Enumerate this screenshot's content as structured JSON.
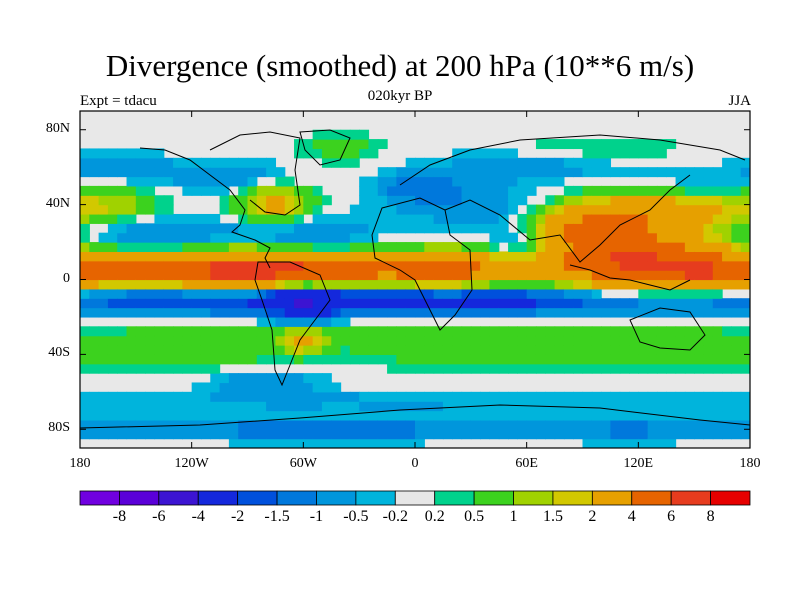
{
  "header": {
    "title": "Divergence (smoothed) at 200 hPa (10**6 m/s)",
    "experiment": "Expt = tdacu",
    "period": "020kyr BP",
    "season": "JJA"
  },
  "map": {
    "projection": "cylindrical-equidistant",
    "lon_range": [
      -180,
      180
    ],
    "lat_range": [
      -90,
      90
    ],
    "y_ticks": [
      {
        "lat": 80,
        "label": "80N"
      },
      {
        "lat": 40,
        "label": "40N"
      },
      {
        "lat": 0,
        "label": "0"
      },
      {
        "lat": -40,
        "label": "40S"
      },
      {
        "lat": -80,
        "label": "80S"
      }
    ],
    "x_ticks": [
      {
        "lon": -180,
        "label": "180"
      },
      {
        "lon": -120,
        "label": "120W"
      },
      {
        "lon": -60,
        "label": "60W"
      },
      {
        "lon": 0,
        "label": "0"
      },
      {
        "lon": 60,
        "label": "60E"
      },
      {
        "lon": 120,
        "label": "120E"
      },
      {
        "lon": 180,
        "label": "180"
      }
    ],
    "background_color": "#e8e8e8",
    "coastline_color": "#000000"
  },
  "colorbar": {
    "colors": [
      "#7000e0",
      "#5a00d8",
      "#3c14d2",
      "#1428dc",
      "#0050dc",
      "#0078dc",
      "#0096dc",
      "#00b4dc",
      "#e6e6e6",
      "#00d28c",
      "#3cd21e",
      "#a0d200",
      "#d2c800",
      "#e6a000",
      "#e66400",
      "#e63c1e",
      "#e60000"
    ],
    "labels": [
      "-8",
      "-6",
      "-4",
      "-2",
      "-1.5",
      "-1",
      "-0.5",
      "-0.2",
      "0.2",
      "0.5",
      "1",
      "1.5",
      "2",
      "4",
      "6",
      "8"
    ]
  },
  "chart_data": {
    "type": "heatmap",
    "title": "Divergence (smoothed) at 200 hPa (10**6 m/s)",
    "xlabel": "",
    "ylabel": "",
    "xlim": [
      -180,
      180
    ],
    "ylim": [
      -90,
      90
    ],
    "levels": [
      -8,
      -6,
      -4,
      -2,
      -1.5,
      -1,
      -0.5,
      -0.2,
      0.2,
      0.5,
      1,
      1.5,
      2,
      4,
      6,
      8
    ],
    "features": [
      {
        "lon": -90,
        "lat": 5,
        "w": 35,
        "h": 7,
        "v": 7
      },
      {
        "lon": -160,
        "lat": 5,
        "w": 28,
        "h": 6,
        "v": 3
      },
      {
        "lon": -45,
        "lat": 5,
        "w": 20,
        "h": 6,
        "v": 2.5
      },
      {
        "lon": 15,
        "lat": 5,
        "w": 30,
        "h": 7,
        "v": 5
      },
      {
        "lon": 115,
        "lat": 10,
        "w": 35,
        "h": 12,
        "v": 6
      },
      {
        "lon": 160,
        "lat": 3,
        "w": 22,
        "h": 7,
        "v": 3
      },
      {
        "lon": 95,
        "lat": 28,
        "w": 22,
        "h": 7,
        "v": 3
      },
      {
        "lon": 130,
        "lat": 38,
        "w": 35,
        "h": 8,
        "v": 2.5
      },
      {
        "lon": -75,
        "lat": 40,
        "w": 14,
        "h": 8,
        "v": 2.5
      },
      {
        "lon": -165,
        "lat": 40,
        "w": 20,
        "h": 7,
        "v": 1.2
      },
      {
        "lon": 55,
        "lat": 20,
        "w": 14,
        "h": 8,
        "v": -1.5
      },
      {
        "lon": -60,
        "lat": -10,
        "w": 12,
        "h": 10,
        "v": -2
      },
      {
        "lon": 0,
        "lat": -10,
        "w": 180,
        "h": 6,
        "v": -2.8
      },
      {
        "lon": -60,
        "lat": 25,
        "w": 25,
        "h": 7,
        "v": -1.2
      },
      {
        "lon": -140,
        "lat": 25,
        "w": 30,
        "h": 6,
        "v": -1.2
      },
      {
        "lon": 30,
        "lat": 40,
        "w": 30,
        "h": 8,
        "v": -1
      },
      {
        "lon": -100,
        "lat": 55,
        "w": 25,
        "h": 6,
        "v": -1
      },
      {
        "lon": 60,
        "lat": 60,
        "w": 40,
        "h": 6,
        "v": -0.8
      },
      {
        "lon": 150,
        "lat": 50,
        "w": 25,
        "h": 5,
        "v": -0.8
      },
      {
        "lon": -40,
        "lat": 70,
        "w": 15,
        "h": 6,
        "v": 0.8
      },
      {
        "lon": 100,
        "lat": 70,
        "w": 30,
        "h": 5,
        "v": 0.6
      },
      {
        "lon": 0,
        "lat": -30,
        "w": 180,
        "h": 5,
        "v": 0.7
      },
      {
        "lon": 30,
        "lat": -40,
        "w": 40,
        "h": 6,
        "v": 0.8
      },
      {
        "lon": 150,
        "lat": -40,
        "w": 40,
        "h": 6,
        "v": 0.8
      },
      {
        "lon": -120,
        "lat": -40,
        "w": 40,
        "h": 6,
        "v": 0.8
      },
      {
        "lon": -60,
        "lat": -32,
        "w": 8,
        "h": 5,
        "v": 2
      },
      {
        "lon": -80,
        "lat": -55,
        "w": 20,
        "h": 5,
        "v": -1
      },
      {
        "lon": 0,
        "lat": -65,
        "w": 180,
        "h": 4,
        "v": -0.6
      },
      {
        "lon": -50,
        "lat": -80,
        "w": 60,
        "h": 4,
        "v": -1.5
      },
      {
        "lon": 120,
        "lat": -80,
        "w": 60,
        "h": 4,
        "v": -1.2
      },
      {
        "lon": 0,
        "lat": 50,
        "w": 15,
        "h": 5,
        "v": -1.2
      },
      {
        "lon": -160,
        "lat": 60,
        "w": 20,
        "h": 5,
        "v": -1
      }
    ]
  }
}
